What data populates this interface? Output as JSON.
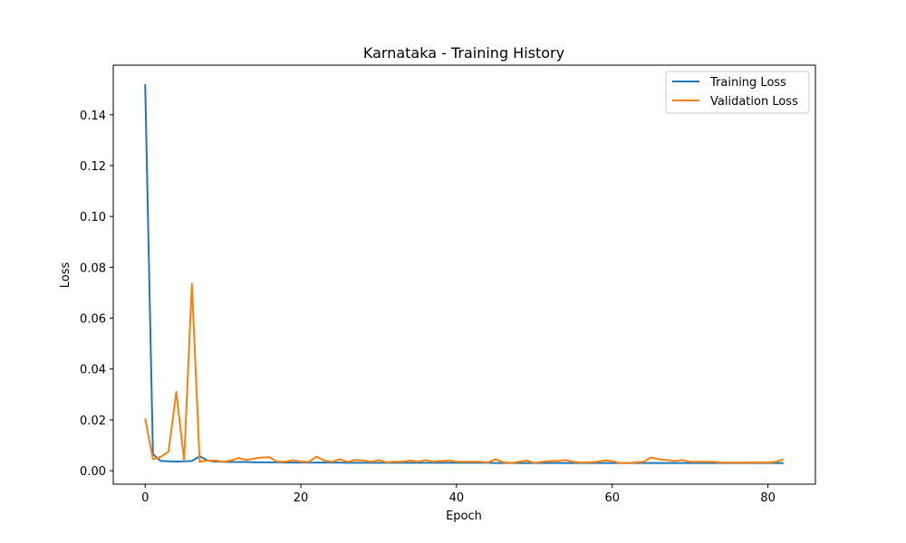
{
  "chart_data": {
    "type": "line",
    "title": "Karnataka - Training History",
    "xlabel": "Epoch",
    "ylabel": "Loss",
    "xlim": [
      -4.1,
      86.1
    ],
    "ylim": [
      -0.0053,
      0.1595
    ],
    "xticks": [
      0,
      20,
      40,
      60,
      80
    ],
    "xtick_labels": [
      "0",
      "20",
      "40",
      "60",
      "80"
    ],
    "yticks": [
      0.0,
      0.02,
      0.04,
      0.06,
      0.08,
      0.1,
      0.12,
      0.14
    ],
    "ytick_labels": [
      "0.00",
      "0.02",
      "0.04",
      "0.06",
      "0.08",
      "0.10",
      "0.12",
      "0.14"
    ],
    "grid": false,
    "legend_position": "top-right",
    "x": [
      0,
      1,
      2,
      3,
      4,
      5,
      6,
      7,
      8,
      9,
      10,
      11,
      12,
      13,
      14,
      15,
      16,
      17,
      18,
      19,
      20,
      21,
      22,
      23,
      24,
      25,
      26,
      27,
      28,
      29,
      30,
      31,
      32,
      33,
      34,
      35,
      36,
      37,
      38,
      39,
      40,
      41,
      42,
      43,
      44,
      45,
      46,
      47,
      48,
      49,
      50,
      51,
      52,
      53,
      54,
      55,
      56,
      57,
      58,
      59,
      60,
      61,
      62,
      63,
      64,
      65,
      66,
      67,
      68,
      69,
      70,
      71,
      72,
      73,
      74,
      75,
      76,
      77,
      78,
      79,
      80,
      81,
      82
    ],
    "series": [
      {
        "name": "Training Loss",
        "color": "#1f77b4",
        "values": [
          0.152,
          0.0065,
          0.0038,
          0.0037,
          0.0036,
          0.0037,
          0.0038,
          0.0057,
          0.004,
          0.0036,
          0.0035,
          0.0034,
          0.0034,
          0.0034,
          0.0033,
          0.0033,
          0.0033,
          0.0033,
          0.0032,
          0.0032,
          0.0032,
          0.0032,
          0.0032,
          0.0032,
          0.0032,
          0.0032,
          0.0031,
          0.0031,
          0.0031,
          0.0031,
          0.0031,
          0.0031,
          0.0031,
          0.0031,
          0.0031,
          0.0031,
          0.0031,
          0.0031,
          0.0031,
          0.0031,
          0.0031,
          0.0031,
          0.0031,
          0.0031,
          0.0031,
          0.003,
          0.003,
          0.003,
          0.003,
          0.003,
          0.003,
          0.003,
          0.003,
          0.003,
          0.003,
          0.003,
          0.003,
          0.003,
          0.003,
          0.003,
          0.003,
          0.003,
          0.003,
          0.003,
          0.003,
          0.003,
          0.003,
          0.003,
          0.003,
          0.003,
          0.003,
          0.003,
          0.003,
          0.003,
          0.003,
          0.003,
          0.003,
          0.003,
          0.003,
          0.003,
          0.003,
          0.003,
          0.003
        ]
      },
      {
        "name": "Validation Loss",
        "color": "#ff7f0e",
        "values": [
          0.0205,
          0.0045,
          0.0055,
          0.0075,
          0.031,
          0.004,
          0.0735,
          0.0035,
          0.004,
          0.004,
          0.0035,
          0.004,
          0.005,
          0.0042,
          0.0048,
          0.0052,
          0.0053,
          0.0035,
          0.0035,
          0.0042,
          0.0035,
          0.0035,
          0.0055,
          0.004,
          0.0035,
          0.0045,
          0.0035,
          0.0042,
          0.004,
          0.0035,
          0.0042,
          0.0033,
          0.0035,
          0.0035,
          0.004,
          0.0035,
          0.0042,
          0.0035,
          0.0038,
          0.004,
          0.0035,
          0.0035,
          0.0035,
          0.0035,
          0.0032,
          0.0045,
          0.0033,
          0.003,
          0.0035,
          0.004,
          0.003,
          0.0035,
          0.0038,
          0.0038,
          0.0042,
          0.0035,
          0.0032,
          0.0033,
          0.0035,
          0.004,
          0.0038,
          0.003,
          0.003,
          0.0033,
          0.0035,
          0.0052,
          0.0045,
          0.0042,
          0.0038,
          0.0042,
          0.0035,
          0.0035,
          0.0035,
          0.0035,
          0.0032,
          0.0032,
          0.0032,
          0.0032,
          0.0032,
          0.0033,
          0.0032,
          0.0035,
          0.0045
        ]
      }
    ]
  }
}
